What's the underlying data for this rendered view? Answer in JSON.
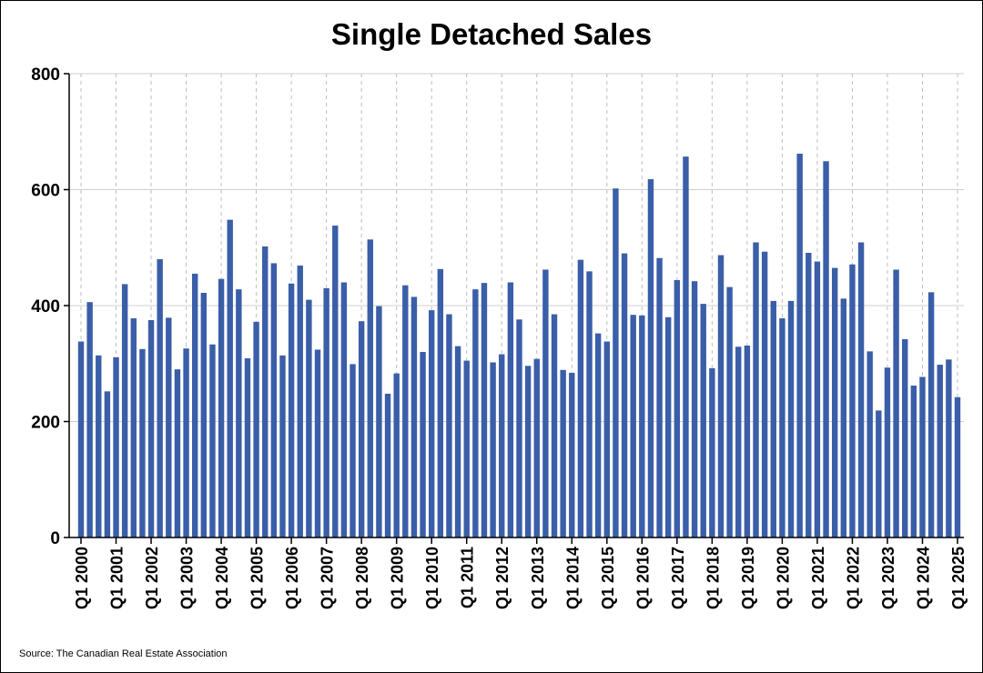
{
  "chart_data": {
    "type": "bar",
    "title": "Single Detached Sales",
    "xlabel": "",
    "ylabel": "",
    "ylim": [
      0,
      800
    ],
    "yticks": [
      0,
      200,
      400,
      600,
      800
    ],
    "grid": "horizontal solid, vertical dashed at Q1 of each year",
    "bar_color": "#3a5ea8",
    "xtick_labels": [
      "Q1 2000",
      "Q1 2001",
      "Q1 2002",
      "Q1 2003",
      "Q1 2004",
      "Q1 2005",
      "Q1 2006",
      "Q1 2007",
      "Q1 2008",
      "Q1 2009",
      "Q1 2010",
      "Q1 2011",
      "Q1 2012",
      "Q1 2013",
      "Q1 2014",
      "Q1 2015",
      "Q1 2016",
      "Q1 2017",
      "Q1 2018",
      "Q1 2019",
      "Q1 2020",
      "Q1 2021",
      "Q1 2022",
      "Q1 2023",
      "Q1 2024",
      "Q1 2025"
    ],
    "quarters_per_label": 4,
    "values": [
      338,
      406,
      314,
      252,
      311,
      437,
      378,
      325,
      375,
      480,
      379,
      290,
      326,
      455,
      422,
      333,
      446,
      548,
      428,
      309,
      372,
      502,
      473,
      314,
      438,
      469,
      410,
      324,
      430,
      538,
      440,
      299,
      373,
      514,
      399,
      248,
      283,
      435,
      415,
      320,
      392,
      463,
      385,
      330,
      305,
      428,
      439,
      302,
      316,
      440,
      376,
      296,
      308,
      462,
      385,
      289,
      284,
      479,
      459,
      352,
      338,
      602,
      490,
      384,
      383,
      618,
      482,
      380,
      444,
      657,
      442,
      403,
      292,
      487,
      432,
      329,
      331,
      509,
      493,
      408,
      378,
      408,
      662,
      491,
      476,
      649,
      465,
      412,
      471,
      509,
      321,
      219,
      293,
      462,
      342,
      262,
      277,
      423,
      298,
      307,
      242
    ]
  },
  "footer": {
    "source": "Source: The Canadian Real Estate Association"
  }
}
